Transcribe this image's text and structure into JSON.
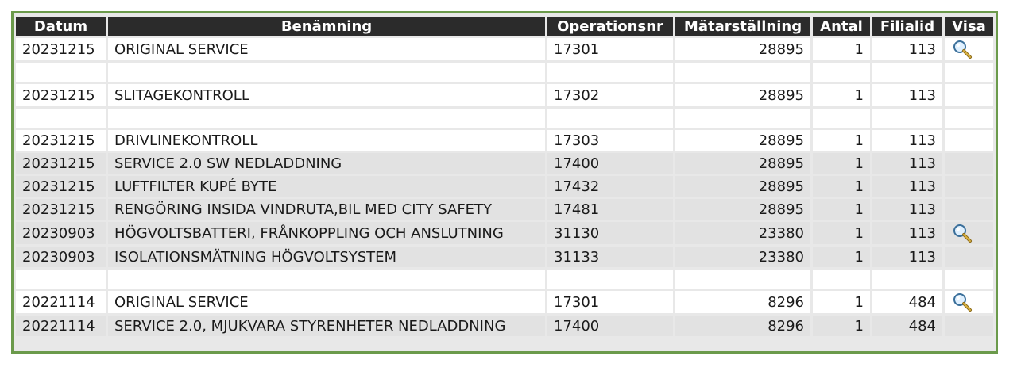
{
  "columns": [
    "Datum",
    "Benämning",
    "Operationsnr",
    "Mätarställning",
    "Antal",
    "Filialid",
    "Visa"
  ],
  "rows": [
    {
      "type": "data",
      "shade": false,
      "tall": true,
      "datum": "20231215",
      "benamning": "ORIGINAL SERVICE",
      "operationsnr": "17301",
      "matarstallning": "28895",
      "antal": "1",
      "filialid": "113",
      "visa": true
    },
    {
      "type": "spacer"
    },
    {
      "type": "data",
      "shade": false,
      "tall": true,
      "datum": "20231215",
      "benamning": "SLITAGEKONTROLL",
      "operationsnr": "17302",
      "matarstallning": "28895",
      "antal": "1",
      "filialid": "113",
      "visa": false
    },
    {
      "type": "spacer"
    },
    {
      "type": "data",
      "shade": false,
      "tall": false,
      "datum": "20231215",
      "benamning": "DRIVLINEKONTROLL",
      "operationsnr": "17303",
      "matarstallning": "28895",
      "antal": "1",
      "filialid": "113",
      "visa": false
    },
    {
      "type": "data",
      "shade": true,
      "tall": false,
      "datum": "20231215",
      "benamning": "SERVICE 2.0 SW NEDLADDNING",
      "operationsnr": "17400",
      "matarstallning": "28895",
      "antal": "1",
      "filialid": "113",
      "visa": false
    },
    {
      "type": "data",
      "shade": true,
      "tall": false,
      "datum": "20231215",
      "benamning": "LUFTFILTER KUPÉ BYTE",
      "operationsnr": "17432",
      "matarstallning": "28895",
      "antal": "1",
      "filialid": "113",
      "visa": false
    },
    {
      "type": "data",
      "shade": true,
      "tall": false,
      "datum": "20231215",
      "benamning": "RENGÖRING INSIDA VINDRUTA,BIL MED CITY SAFETY",
      "operationsnr": "17481",
      "matarstallning": "28895",
      "antal": "1",
      "filialid": "113",
      "visa": false
    },
    {
      "type": "data",
      "shade": true,
      "tall": true,
      "datum": "20230903",
      "benamning": "HÖGVOLTSBATTERI, FRÅNKOPPLING OCH ANSLUTNING",
      "operationsnr": "31130",
      "matarstallning": "23380",
      "antal": "1",
      "filialid": "113",
      "visa": true
    },
    {
      "type": "data",
      "shade": true,
      "tall": false,
      "datum": "20230903",
      "benamning": "ISOLATIONSMÄTNING HÖGVOLTSYSTEM",
      "operationsnr": "31133",
      "matarstallning": "23380",
      "antal": "1",
      "filialid": "113",
      "visa": false
    },
    {
      "type": "spacer"
    },
    {
      "type": "data",
      "shade": false,
      "tall": true,
      "datum": "20221114",
      "benamning": "ORIGINAL SERVICE",
      "operationsnr": "17301",
      "matarstallning": "8296",
      "antal": "1",
      "filialid": "484",
      "visa": true
    },
    {
      "type": "data",
      "shade": true,
      "tall": false,
      "datum": "20221114",
      "benamning": "SERVICE 2.0, MJUKVARA STYRENHETER NEDLADDNING",
      "operationsnr": "17400",
      "matarstallning": "8296",
      "antal": "1",
      "filialid": "484",
      "visa": false
    }
  ],
  "icons": {
    "view": "magnifier-icon"
  },
  "colors": {
    "header_bg": "#2b2b2b",
    "frame_border": "#6b9a4b",
    "shaded_row": "#e2e2e2"
  }
}
